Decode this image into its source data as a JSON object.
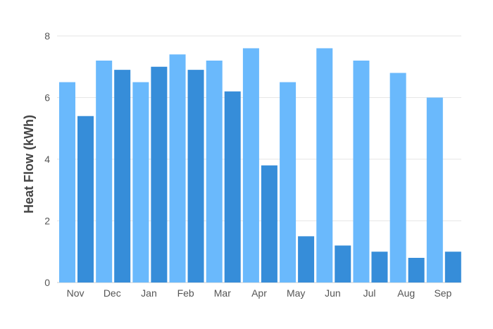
{
  "chart_data": {
    "type": "bar",
    "title": "",
    "xlabel": "",
    "ylabel": "Heat Flow (kWh)",
    "ylim": [
      0,
      8
    ],
    "yticks": [
      0,
      2,
      4,
      6,
      8
    ],
    "grid": true,
    "categories": [
      "Nov",
      "Dec",
      "Jan",
      "Feb",
      "Mar",
      "Apr",
      "May",
      "Jun",
      "Jul",
      "Aug",
      "Sep"
    ],
    "series": [
      {
        "color": "#6ab9fc",
        "values": [
          6.5,
          7.2,
          6.5,
          7.4,
          7.2,
          7.6,
          6.5,
          7.6,
          7.2,
          6.8,
          6.0
        ]
      },
      {
        "color": "#368dd9",
        "values": [
          5.4,
          6.9,
          7.0,
          6.9,
          6.2,
          3.8,
          1.5,
          1.2,
          1.0,
          0.8,
          1.0
        ]
      }
    ]
  }
}
